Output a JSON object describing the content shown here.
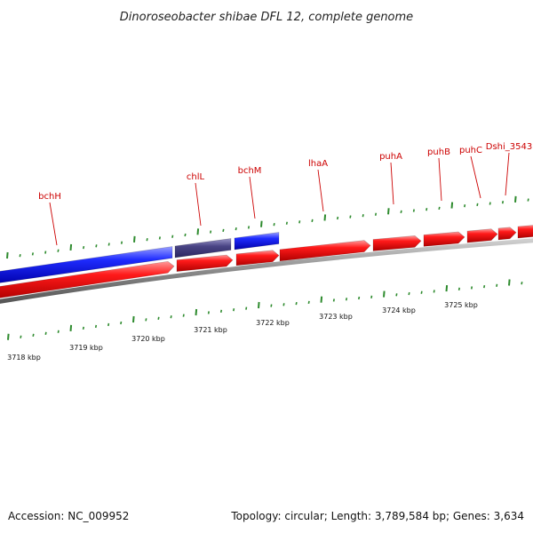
{
  "title": "Dinoroseobacter shibae DFL 12, complete genome",
  "footer": {
    "accession": "Accession: NC_009952",
    "topology": "Topology: circular; Length: 3,789,584 bp; Genes: 3,634"
  },
  "colors": {
    "forward_strand": "#0000ee",
    "forward_selected": "#4a4585",
    "reverse_strand": "#ee0000",
    "backbone": "#888888",
    "ticks": "#2e8b2e",
    "labels": "#cc0000"
  },
  "genes": [
    {
      "name": "bchH",
      "strand": "forward"
    },
    {
      "name": "chlL",
      "strand": "forward"
    },
    {
      "name": "bchM",
      "strand": "forward"
    },
    {
      "name": "lhaA",
      "strand": "reverse"
    },
    {
      "name": "puhA",
      "strand": "reverse"
    },
    {
      "name": "puhB",
      "strand": "reverse"
    },
    {
      "name": "puhC",
      "strand": "reverse"
    },
    {
      "name": "Dshi_3543",
      "strand": "reverse"
    }
  ],
  "scale": {
    "unit": "kbp",
    "ticks": [
      "3718 kbp",
      "3719 kbp",
      "3720 kbp",
      "3721 kbp",
      "3722 kbp",
      "3723 kbp",
      "3724 kbp",
      "3725 kbp"
    ]
  }
}
